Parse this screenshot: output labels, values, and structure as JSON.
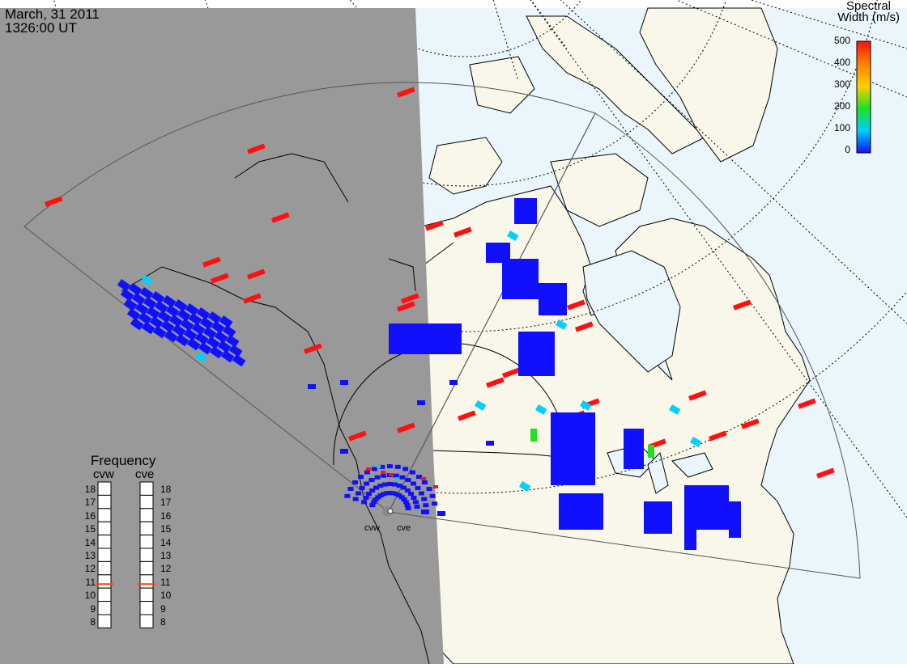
{
  "header": {
    "date": "March, 31 2011",
    "time": "1326:00 UT"
  },
  "colorbar": {
    "title_line1": "Spectral",
    "title_line2": "Width (m/s)",
    "min": 0,
    "max": 500,
    "ticks": [
      "500",
      "400",
      "300",
      "200",
      "100",
      "0"
    ]
  },
  "frequency_panel": {
    "title": "Frequency",
    "radars": [
      {
        "name": "cvw",
        "value_mhz": 10.8
      },
      {
        "name": "cve",
        "value_mhz": 10.8
      }
    ],
    "scale": [
      "18",
      "17",
      "16",
      "15",
      "14",
      "13",
      "12",
      "11",
      "10",
      "9",
      "8"
    ],
    "marker_color": "#ff4500"
  },
  "radar_sites": [
    {
      "name": "cvw"
    },
    {
      "name": "cve"
    }
  ],
  "colors": {
    "night": "#999999",
    "land": "#f8f7e9",
    "ocean": "#eaf5fc",
    "scale_0": "#1010ff",
    "scale_100": "#00d0ff",
    "scale_200": "#20e020",
    "scale_300": "#ffd000",
    "scale_500": "#ff1010"
  }
}
